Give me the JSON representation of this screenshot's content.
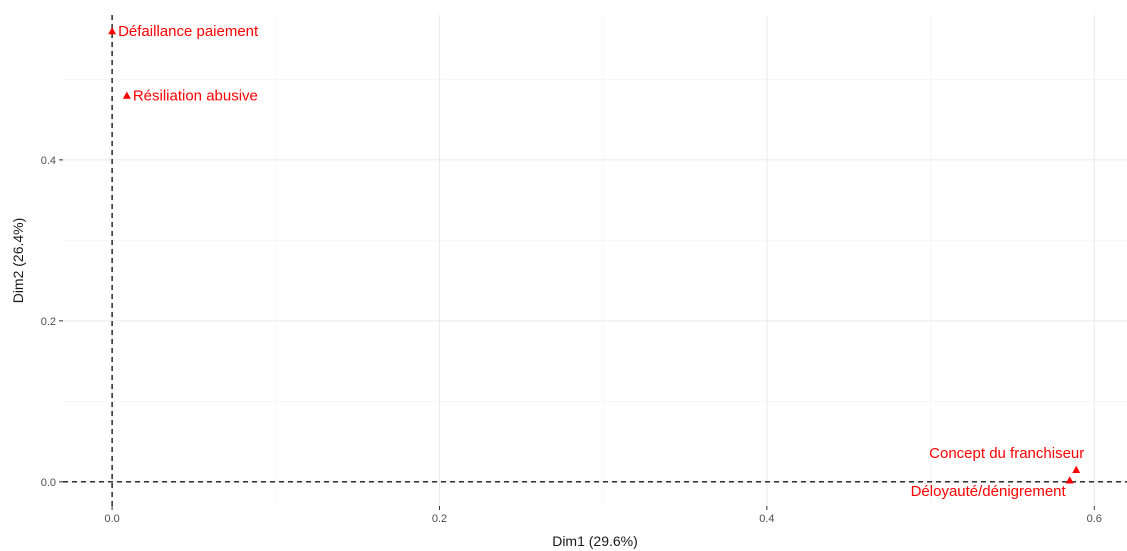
{
  "chart_data": {
    "type": "scatter",
    "xlabel": "Dim1 (29.6%)",
    "ylabel": "Dim2 (26.4%)",
    "xlim": [
      -0.03,
      0.62
    ],
    "ylim": [
      -0.03,
      0.58
    ],
    "x_ticks": [
      0.0,
      0.2,
      0.4,
      0.6
    ],
    "x_tick_labels": [
      "0.0",
      "0.2",
      "0.4",
      "0.6"
    ],
    "y_ticks": [
      0.0,
      0.2,
      0.4
    ],
    "y_tick_labels": [
      "0.0",
      "0.2",
      "0.4"
    ],
    "grid": true,
    "reference_lines": {
      "x": 0,
      "y": 0,
      "style": "dashed"
    },
    "point_color": "#ff0000",
    "marker": "triangle",
    "points": [
      {
        "label": "Défaillance paiement",
        "x": 0.0,
        "y": 0.56,
        "label_side": "right"
      },
      {
        "label": "Résiliation abusive",
        "x": 0.009,
        "y": 0.48,
        "label_side": "right"
      },
      {
        "label": "Concept du franchiseur",
        "x": 0.589,
        "y": 0.015,
        "label_side": "above-left"
      },
      {
        "label": "Déloyauté/dénigrement",
        "x": 0.585,
        "y": 0.002,
        "label_side": "below-left"
      }
    ]
  }
}
